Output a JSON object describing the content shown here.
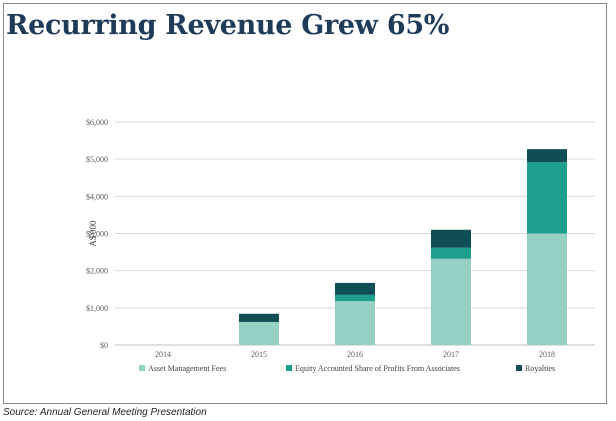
{
  "chart_data": {
    "type": "bar",
    "stacked": true,
    "title": "Recurring Revenue Grew 65%",
    "ylabel": "A$'000",
    "xlabel": "",
    "categories": [
      "2014",
      "2015",
      "2016",
      "2017",
      "2018"
    ],
    "series": [
      {
        "name": "Asset Management Fees",
        "color": "#96cfc3",
        "values": [
          0,
          620,
          1180,
          2320,
          3000
        ]
      },
      {
        "name": "Equity Accounted Share of Profits From Associates",
        "color": "#1e9e8c",
        "values": [
          0,
          0,
          170,
          300,
          1920
        ]
      },
      {
        "name": "Royalties",
        "color": "#0f4e55",
        "values": [
          0,
          220,
          320,
          480,
          350
        ]
      }
    ],
    "ylim": [
      0,
      6000
    ],
    "yticks": [
      "$0",
      "$1,000",
      "$2,000",
      "$3,000",
      "$4,000",
      "$5,000",
      "$6,000"
    ],
    "grid": true,
    "legend_position": "bottom"
  },
  "source": "Source: Annual General Meeting Presentation"
}
